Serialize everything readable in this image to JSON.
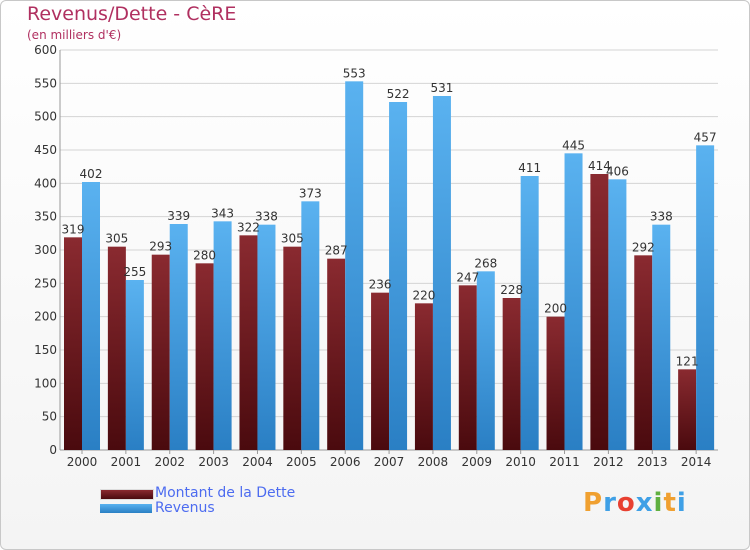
{
  "header": {
    "title": "Revenus/Dette - CèRE",
    "subtitle": "(en milliers d'€)"
  },
  "legend": {
    "items": [
      {
        "label": "Montant de la Dette",
        "color": "#7a1f24"
      },
      {
        "label": "Revenus",
        "color": "#3fa0e6"
      }
    ]
  },
  "logo": {
    "text": "Proxiti",
    "colors": [
      "#f0a030",
      "#3fa0e6",
      "#e84030",
      "#3fa0e6",
      "#60b040",
      "#f0a030",
      "#3fa0e6"
    ]
  },
  "chart_data": {
    "type": "bar",
    "title": "Revenus/Dette - CèRE",
    "subtitle": "(en milliers d'€)",
    "categories": [
      "2000",
      "2001",
      "2002",
      "2003",
      "2004",
      "2005",
      "2006",
      "2007",
      "2008",
      "2009",
      "2010",
      "2011",
      "2012",
      "2013",
      "2014"
    ],
    "series": [
      {
        "name": "Montant de la Dette",
        "color": "#7a1f24",
        "values": [
          319,
          305,
          293,
          280,
          322,
          305,
          287,
          236,
          220,
          247,
          228,
          200,
          414,
          292,
          121
        ]
      },
      {
        "name": "Revenus",
        "color": "#3fa0e6",
        "values": [
          402,
          255,
          339,
          343,
          338,
          373,
          553,
          522,
          531,
          268,
          411,
          445,
          406,
          338,
          457
        ]
      }
    ],
    "ylim": [
      0,
      600
    ],
    "yticks": [
      0,
      50,
      100,
      150,
      200,
      250,
      300,
      350,
      400,
      450,
      500,
      550,
      600
    ],
    "grid": true,
    "legend_position": "bottom-left"
  }
}
